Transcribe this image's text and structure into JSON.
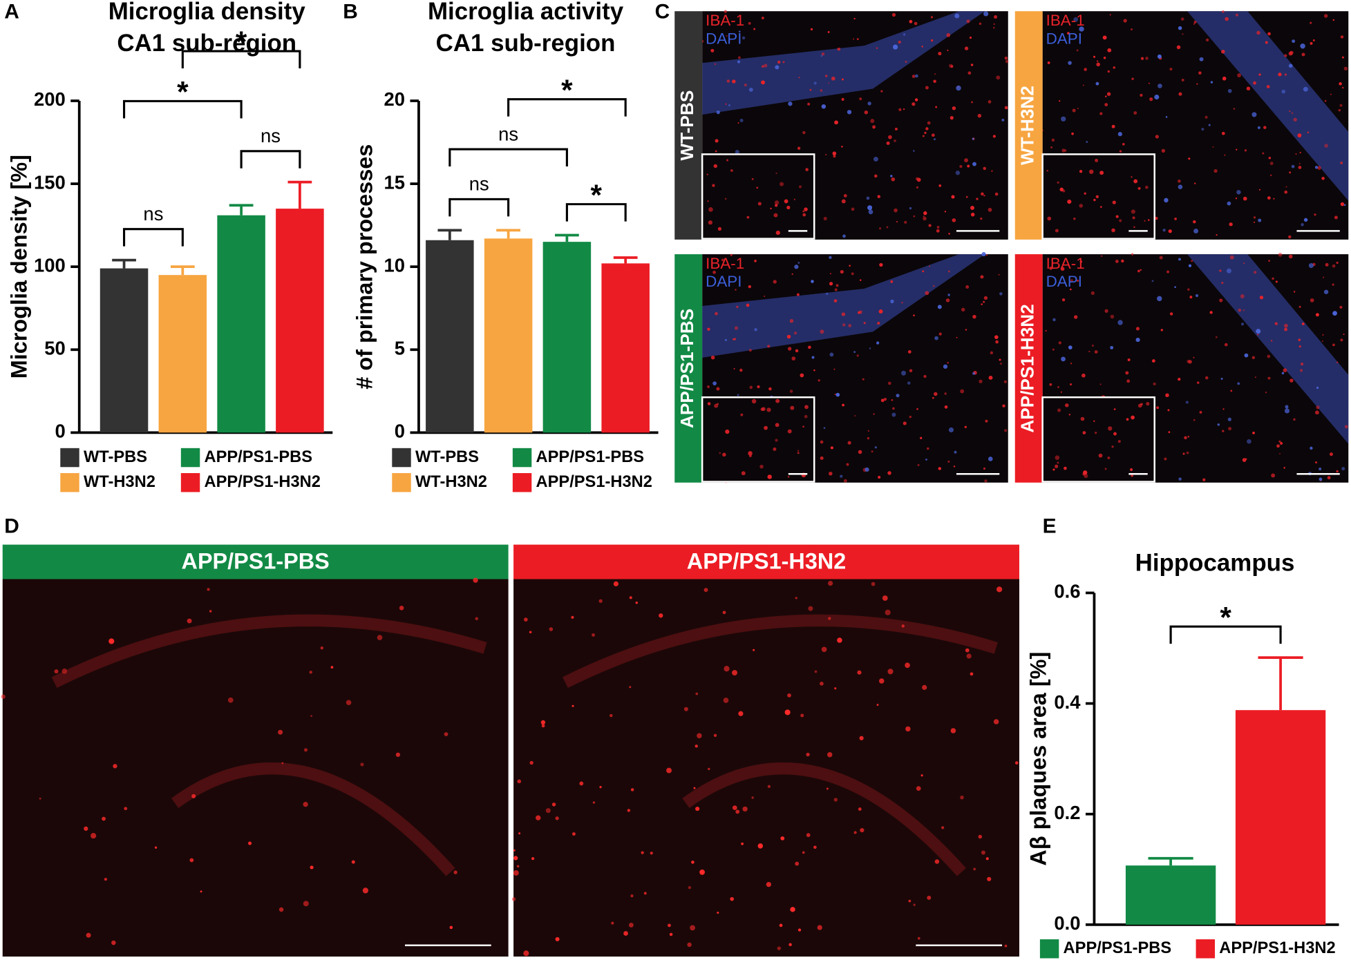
{
  "chart_data": [
    {
      "type": "bar",
      "panel_label": "A",
      "title": "Microglia density",
      "subtitle": "CA1 sub-region",
      "y_label": "Microglia density [%]",
      "categories": [
        "WT-PBS",
        "WT-H3N2",
        "APP/PS1-PBS",
        "APP/PS1-H3N2"
      ],
      "values": [
        99,
        95,
        131,
        135
      ],
      "errors": [
        5,
        5,
        6,
        16
      ],
      "colors": [
        "#333333",
        "#f7a541",
        "#128a45",
        "#ec1c24"
      ],
      "ylim": [
        0,
        200
      ],
      "yticks": [
        0,
        50,
        100,
        150,
        200
      ],
      "comparisons": [
        {
          "label": "ns",
          "between": [
            0,
            1
          ]
        },
        {
          "label": "ns",
          "between": [
            2,
            3
          ]
        },
        {
          "label": "*",
          "between": [
            0,
            2
          ]
        },
        {
          "label": "*",
          "between": [
            1,
            3
          ]
        }
      ]
    },
    {
      "type": "bar",
      "panel_label": "B",
      "title": "Microglia activity",
      "subtitle": "CA1 sub-region",
      "y_label": "# of primary processes",
      "categories": [
        "WT-PBS",
        "WT-H3N2",
        "APP/PS1-PBS",
        "APP/PS1-H3N2"
      ],
      "values": [
        11.6,
        11.7,
        11.5,
        10.2
      ],
      "errors": [
        0.6,
        0.5,
        0.4,
        0.35
      ],
      "colors": [
        "#333333",
        "#f7a541",
        "#128a45",
        "#ec1c24"
      ],
      "ylim": [
        0,
        20
      ],
      "yticks": [
        0,
        5,
        10,
        15,
        20
      ],
      "comparisons": [
        {
          "label": "ns",
          "between": [
            0,
            1
          ]
        },
        {
          "label": "*",
          "between": [
            2,
            3
          ]
        },
        {
          "label": "ns",
          "between": [
            0,
            2
          ]
        },
        {
          "label": "*",
          "between": [
            1,
            3
          ]
        }
      ]
    },
    {
      "type": "bar",
      "panel_label": "E",
      "title": "Hippocampus",
      "y_label": "Aβ plaques area [%]",
      "categories": [
        "APP/PS1-PBS",
        "APP/PS1-H3N2"
      ],
      "values": [
        0.107,
        0.388
      ],
      "errors": [
        0.013,
        0.095
      ],
      "colors": [
        "#128a45",
        "#ec1c24"
      ],
      "ylim": [
        0,
        0.6
      ],
      "yticks": [
        {
          "value": 0,
          "label": "0.0"
        },
        0.2,
        0.4,
        0.6
      ],
      "comparisons": [
        {
          "label": "*",
          "between": [
            0,
            1
          ]
        }
      ]
    }
  ],
  "panel_c": {
    "label": "C",
    "stains": [
      {
        "name": "IBA-1",
        "color": "#e8232a"
      },
      {
        "name": "DAPI",
        "color": "#3b5fd9"
      }
    ],
    "images": [
      {
        "group": "WT-PBS",
        "color": "#333333"
      },
      {
        "group": "WT-H3N2",
        "color": "#f7a541"
      },
      {
        "group": "APP/PS1-PBS",
        "color": "#128a45"
      },
      {
        "group": "APP/PS1-H3N2",
        "color": "#ec1c24"
      }
    ]
  },
  "panel_d": {
    "label": "D",
    "images": [
      {
        "group": "APP/PS1-PBS",
        "color": "#128a45"
      },
      {
        "group": "APP/PS1-H3N2",
        "color": "#ec1c24"
      }
    ]
  }
}
